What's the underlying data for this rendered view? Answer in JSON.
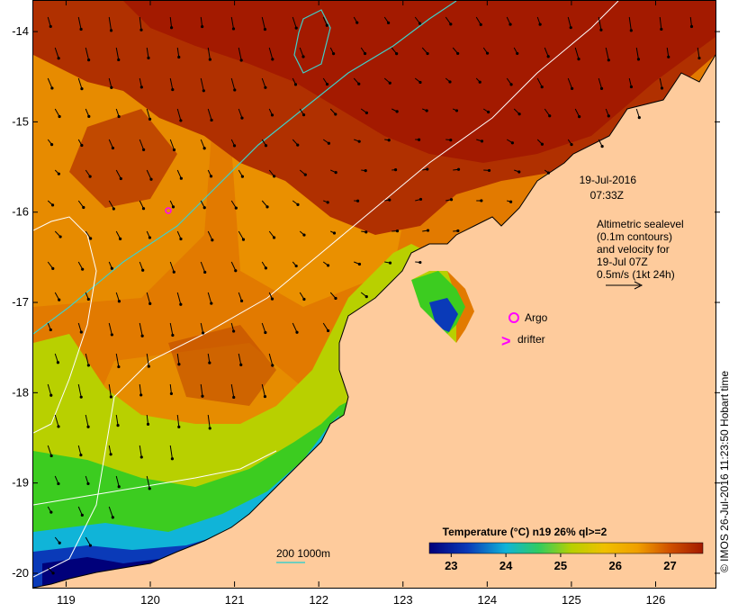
{
  "map": {
    "lon_ticks": [
      "119",
      "120",
      "121",
      "122",
      "123",
      "124",
      "125",
      "126"
    ],
    "lat_ticks": [
      "-14",
      "-15",
      "-16",
      "-17",
      "-18",
      "-19",
      "-20"
    ],
    "lon_range": [
      118.6,
      126.7
    ],
    "lat_range": [
      -13.65,
      -20.15
    ]
  },
  "annotations": {
    "date": "19-Jul-2016",
    "time": "07:33Z",
    "alt_line1": "Altimetric sealevel",
    "alt_line2": "(0.1m contours)",
    "alt_line3": "and velocity for",
    "alt_line4": "19-Jul 07Z",
    "alt_line5": "0.5m/s (1kt 24h)",
    "argo_label": "Argo",
    "drifter_label": "drifter",
    "drifter_symbol": ">",
    "depth_label": "200  1000m"
  },
  "colorbar": {
    "title": "Temperature (°C) n19 26% ql>=2",
    "ticks": [
      "23",
      "24",
      "25",
      "26",
      "27"
    ],
    "range": [
      22.6,
      27.6
    ]
  },
  "timestamp": "© IMOS 26-Jul-2016 11:23:50 Hobart time",
  "colors": {
    "land": "#fecb9c",
    "warm_dark": "#a31a00",
    "warm": "#c04000",
    "orange": "#e27a00",
    "amber": "#f0a000",
    "yellow_green": "#b8d000",
    "green": "#3ccc20",
    "cyan": "#10b4d8",
    "blue": "#0a3ab8",
    "navy": "#00007a",
    "argo": "#ff00ff",
    "contour_white": "#ffffff",
    "contour_cyan": "#40d0c8"
  }
}
